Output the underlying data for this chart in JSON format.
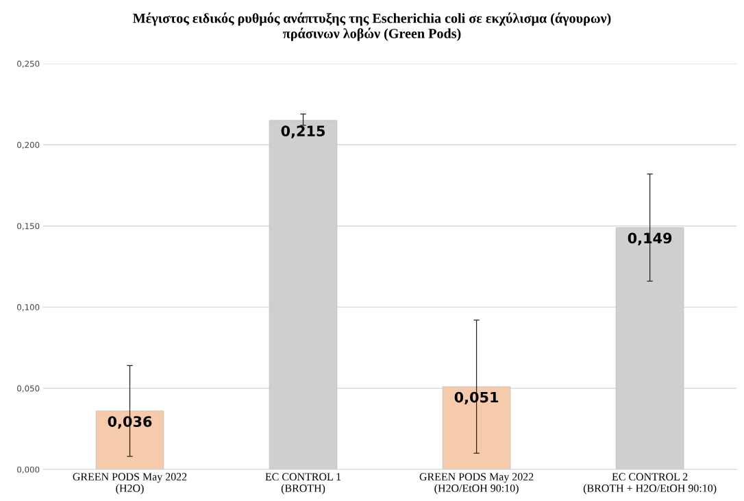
{
  "chart_data": {
    "type": "bar",
    "title": "Μέγιστος ειδικός ρυθμός ανάπτυξης της Escherichia coli σε εκχύλισμα (άγουρων)\nπράσινων λοβών (Green Pods)",
    "categories": [
      "GREEN PODS May 2022\n(H2O)",
      "EC CONTROL 1\n(BROTH)",
      "GREEN PODS May 2022\n(H2O/EtOH 90:10)",
      "EC CONTROL 2\n(BROTH + H2O/EtOH 90:10)"
    ],
    "values": [
      0.036,
      0.215,
      0.051,
      0.149
    ],
    "colors": [
      "#f5cbab",
      "#d0cecf",
      "#f5cbab",
      "#d0cecf"
    ],
    "errors": [
      0.028,
      [
        0.212,
        0.219
      ],
      0.041,
      [
        0.116,
        0.182
      ]
    ],
    "value_labels": [
      "0,036",
      "0,215",
      "0,051",
      "0,149"
    ],
    "ylim": [
      0,
      0.25
    ],
    "yticks": [
      {
        "value": 0,
        "label": "0,000"
      },
      {
        "value": 0.05,
        "label": "0,050"
      },
      {
        "value": 0.1,
        "label": "0,100"
      },
      {
        "value": 0.15,
        "label": "0,150"
      },
      {
        "value": 0.2,
        "label": "0,200"
      },
      {
        "value": 0.25,
        "label": "0,250"
      }
    ],
    "grid": "y"
  }
}
